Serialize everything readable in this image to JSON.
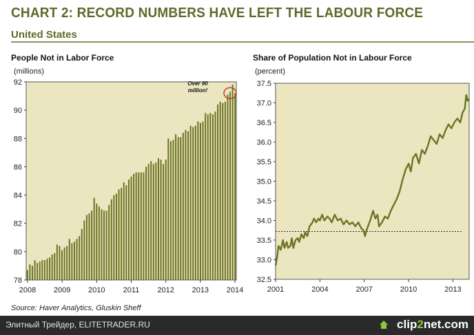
{
  "header": {
    "title": "CHART 2: RECORD NUMBERS HAVE LEFT THE LABOUR FORCE",
    "subtitle": "United States"
  },
  "source": "Source: Haver Analytics, Gluskin Sheff",
  "footer": {
    "text": "Элитный Трейдер, ELITETRADER.RU",
    "logo_part1": "clip",
    "logo_part2": "2",
    "logo_part3": "net.com"
  },
  "colors": {
    "plot_background": "#ebe5c0",
    "series": "#6b7424",
    "annotation_circle": "#c0392b"
  },
  "chart_data": [
    {
      "type": "bar",
      "title": "People Not in Labor Force",
      "ylabel": "(millions)",
      "ylim": [
        78,
        92
      ],
      "yticks": [
        78,
        80,
        82,
        84,
        86,
        88,
        90,
        92
      ],
      "xticks": [
        "2008",
        "2009",
        "2010",
        "2011",
        "2012",
        "2013",
        "2014"
      ],
      "annotation": "Over 90 million!",
      "frequency": "monthly",
      "start": "2008-01",
      "values": [
        78.7,
        79.1,
        79.0,
        79.4,
        79.2,
        79.3,
        79.4,
        79.4,
        79.5,
        79.6,
        79.8,
        79.9,
        80.5,
        80.4,
        80.1,
        80.3,
        80.4,
        80.9,
        80.6,
        80.7,
        80.9,
        81.1,
        81.6,
        82.2,
        82.6,
        82.7,
        82.9,
        83.8,
        83.4,
        83.2,
        83.0,
        82.9,
        82.9,
        83.3,
        83.7,
        84.0,
        84.1,
        84.4,
        84.5,
        84.9,
        84.7,
        85.1,
        85.3,
        85.5,
        85.6,
        85.6,
        85.6,
        85.6,
        86.0,
        86.2,
        86.4,
        86.2,
        86.3,
        86.6,
        86.5,
        86.2,
        86.5,
        88.0,
        87.8,
        87.9,
        88.3,
        88.1,
        88.1,
        88.4,
        88.6,
        88.5,
        88.9,
        88.8,
        88.9,
        89.2,
        89.1,
        89.2,
        89.8,
        89.7,
        89.8,
        89.7,
        89.9,
        90.4,
        90.6,
        90.5,
        90.6,
        91.1,
        91.3,
        91.8,
        91.2
      ]
    },
    {
      "type": "line",
      "title": "Share of Population Not in Labour Force",
      "ylabel": "(percent)",
      "ylim": [
        32.5,
        37.5
      ],
      "yticks": [
        32.5,
        33.0,
        33.5,
        34.0,
        34.5,
        35.0,
        35.5,
        36.0,
        36.5,
        37.0,
        37.5
      ],
      "ytick_labels": [
        "32.5",
        "33.0",
        "33.5",
        "34.0",
        "34.5",
        "35.0",
        "35.5",
        "36.0",
        "36.5",
        "37.0",
        "37.5"
      ],
      "xticks": [
        2001,
        2004,
        2007,
        2010,
        2013
      ],
      "xlim": [
        2001,
        2014.1
      ],
      "reference_line": 33.72,
      "x": [
        2001.0,
        2001.1,
        2001.2,
        2001.35,
        2001.5,
        2001.6,
        2001.75,
        2001.85,
        2002.0,
        2002.1,
        2002.2,
        2002.35,
        2002.5,
        2002.6,
        2002.75,
        2002.9,
        2003.0,
        2003.15,
        2003.3,
        2003.4,
        2003.5,
        2003.6,
        2003.75,
        2003.9,
        2004.0,
        2004.15,
        2004.3,
        2004.5,
        2004.65,
        2004.8,
        2005.0,
        2005.2,
        2005.4,
        2005.6,
        2005.8,
        2006.0,
        2006.2,
        2006.4,
        2006.6,
        2006.8,
        2006.95,
        2007.05,
        2007.2,
        2007.4,
        2007.6,
        2007.75,
        2007.9,
        2008.0,
        2008.2,
        2008.4,
        2008.6,
        2008.8,
        2009.0,
        2009.2,
        2009.4,
        2009.6,
        2009.8,
        2010.0,
        2010.15,
        2010.3,
        2010.5,
        2010.7,
        2010.9,
        2011.1,
        2011.3,
        2011.5,
        2011.7,
        2011.9,
        2012.1,
        2012.3,
        2012.5,
        2012.7,
        2012.9,
        2013.1,
        2013.3,
        2013.5,
        2013.65,
        2013.8,
        2013.9,
        2014.0,
        2014.1
      ],
      "y": [
        32.85,
        33.05,
        33.35,
        33.25,
        33.5,
        33.3,
        33.45,
        33.3,
        33.35,
        33.55,
        33.3,
        33.5,
        33.55,
        33.45,
        33.65,
        33.55,
        33.7,
        33.6,
        33.85,
        33.9,
        33.95,
        34.05,
        33.95,
        34.05,
        34.0,
        34.15,
        34.0,
        34.1,
        34.05,
        33.95,
        34.15,
        34.0,
        34.05,
        33.9,
        34.0,
        33.9,
        33.95,
        33.85,
        33.95,
        33.8,
        33.75,
        33.6,
        33.8,
        34.0,
        34.25,
        34.05,
        34.15,
        33.85,
        33.95,
        34.1,
        34.05,
        34.25,
        34.4,
        34.55,
        34.75,
        35.05,
        35.3,
        35.45,
        35.25,
        35.6,
        35.7,
        35.45,
        35.8,
        35.7,
        35.9,
        36.15,
        36.05,
        35.95,
        36.2,
        36.1,
        36.3,
        36.45,
        36.35,
        36.5,
        36.6,
        36.5,
        36.75,
        36.85,
        37.2,
        37.05,
        37.1
      ]
    }
  ]
}
